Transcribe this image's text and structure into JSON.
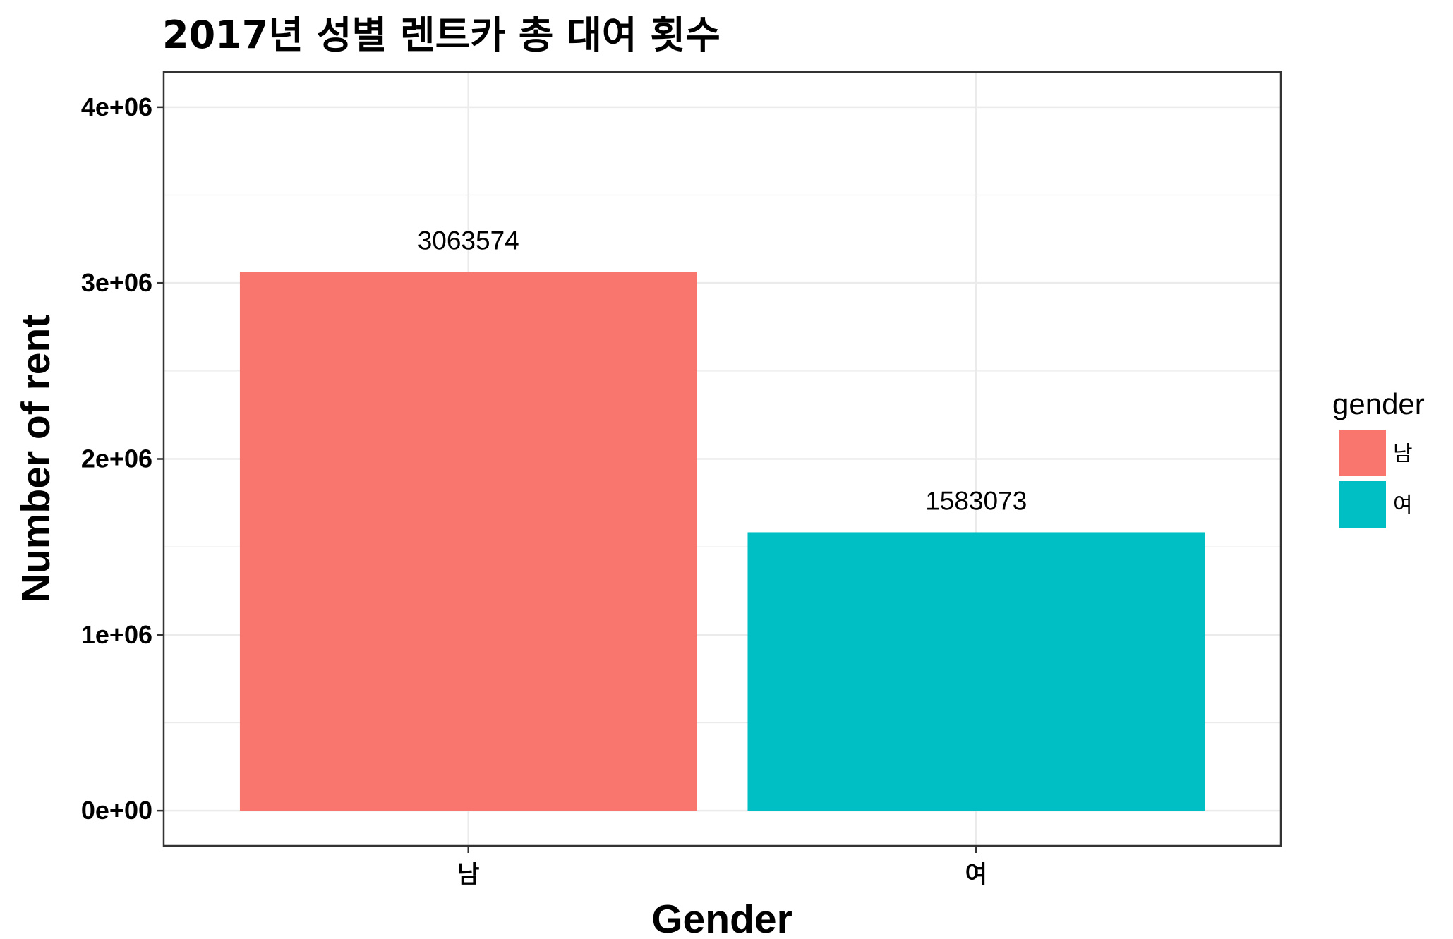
{
  "chart_data": {
    "type": "bar",
    "title": "2017년 성별 렌트카 총 대여 횟수",
    "xlabel": "Gender",
    "ylabel": "Number of rent",
    "categories": [
      "남",
      "여"
    ],
    "values": [
      3063574,
      1583073
    ],
    "data_labels": [
      "3063574",
      "1583073"
    ],
    "colors": [
      "#F8766D",
      "#00BFC4"
    ],
    "ylim": [
      -200000,
      4200000
    ],
    "y_ticks": [
      0,
      1000000,
      2000000,
      3000000,
      4000000
    ],
    "y_tick_labels": [
      "0e+00",
      "1e+06",
      "2e+06",
      "3e+06",
      "4e+06"
    ],
    "grid": true,
    "legend": {
      "title": "gender",
      "position": "right",
      "entries": [
        "남",
        "여"
      ]
    }
  }
}
